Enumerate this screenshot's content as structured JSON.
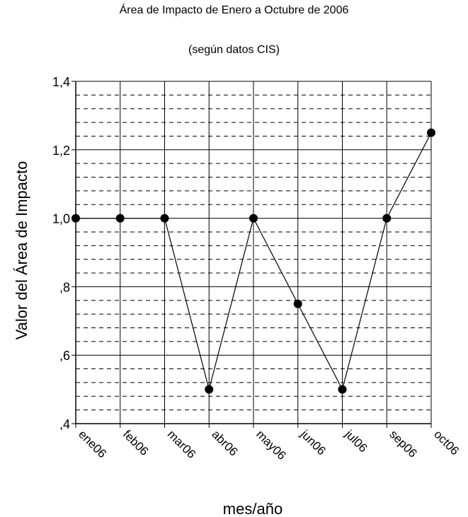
{
  "chart_data": {
    "type": "line",
    "title": "Área de Impacto de Enero a Octubre de 2006",
    "subtitle": "(según datos CIS)",
    "xlabel": "mes/año",
    "ylabel": "Valor del  Área de Impacto",
    "categories": [
      "ene06",
      "feb06",
      "mar06",
      "abr06",
      "may06",
      "jun06",
      "jul06",
      "sep06",
      "oct06"
    ],
    "series": [
      {
        "values": [
          1.0,
          1.0,
          1.0,
          0.5,
          1.0,
          0.75,
          0.5,
          1.0,
          1.25
        ]
      }
    ],
    "ylim": [
      0.4,
      1.4
    ],
    "yticks": [
      0.4,
      0.6,
      0.8,
      1.0,
      1.2,
      1.4
    ],
    "ytick_labels": [
      ",4",
      ",6",
      ",8",
      "1,0",
      "1,2",
      "1,4"
    ],
    "major_grid": true,
    "minor_grid": "dashed",
    "colors": {
      "line": "#000000",
      "marker": "#000000",
      "grid": "#000000"
    }
  }
}
